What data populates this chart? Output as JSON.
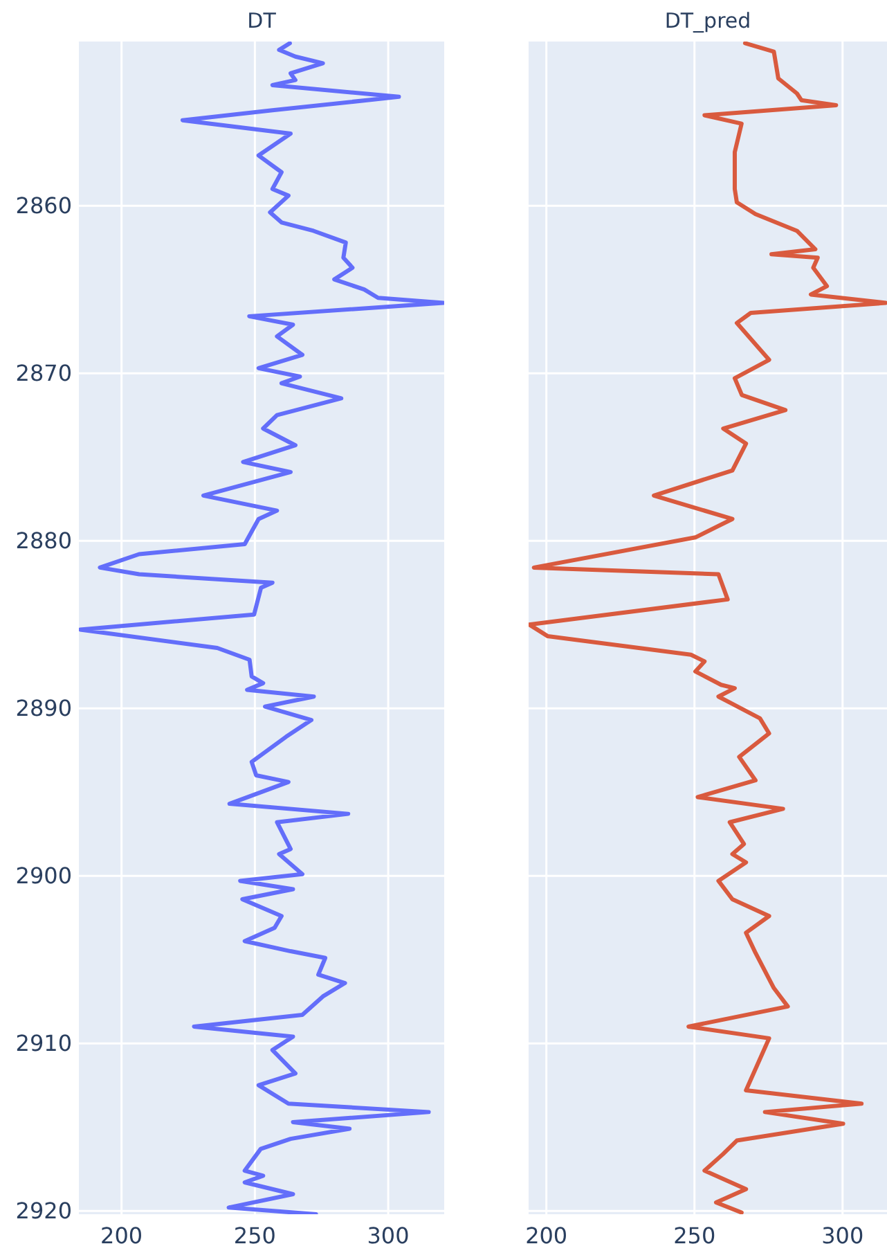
{
  "chart_data": [
    {
      "type": "line",
      "title": "DT",
      "xlim": [
        184,
        321
      ],
      "xticks": [
        200,
        250,
        300
      ],
      "ylim": [
        2920.2,
        2850.2
      ],
      "yticks": [
        2860,
        2870,
        2880,
        2890,
        2900,
        2910,
        2920
      ],
      "grid": true,
      "series": [
        {
          "color": "#636efa",
          "x": [
            263.1,
            259.1,
            265.2,
            275.5,
            263.4,
            265.2,
            256.6,
            304,
            256.6,
            222.9,
            263.4,
            251.4,
            260,
            256.6,
            262.6,
            255.7,
            260,
            272,
            284.1,
            283.2,
            286.6,
            279.8,
            291,
            296.2,
            320.7,
            247.9,
            264.3,
            258.3,
            267.8,
            251.4,
            266.9,
            260,
            282.4,
            258.3,
            253.1,
            265.2,
            245.6,
            263.4,
            230.7,
            258.3,
            251.4,
            246.2,
            206.6,
            191.9,
            206.6,
            256.6,
            252.3,
            249.7,
            184.5,
            235.9,
            248,
            248.8,
            253.1,
            247.1,
            272.1,
            253.8,
            271.2,
            261.7,
            248.8,
            250.5,
            262.6,
            240.5,
            285,
            258.3,
            263.4,
            259.1,
            267.8,
            244.5,
            264.3,
            245.3,
            260,
            257.4,
            246.2,
            263.4,
            276.4,
            273.8,
            283.8,
            275.5,
            267.8,
            227.2,
            264.3,
            256.6,
            265.2,
            251.4,
            262.6,
            315.2,
            264.3,
            285.5,
            263.4,
            252.2,
            246.2,
            253.1,
            246.2,
            264.3,
            240.2,
            272.9
          ],
          "values": [
            2850.3,
            2850.7,
            2851.1,
            2851.5,
            2852.1,
            2852.5,
            2852.8,
            2853.5,
            2854.3,
            2854.9,
            2855.7,
            2857,
            2858,
            2859,
            2859.4,
            2860.4,
            2861,
            2861.5,
            2862.2,
            2863.1,
            2863.7,
            2864.4,
            2865,
            2865.5,
            2865.8,
            2866.6,
            2867.1,
            2867.8,
            2868.9,
            2869.7,
            2870.2,
            2870.6,
            2871.5,
            2872.5,
            2873.3,
            2874.3,
            2875.3,
            2875.9,
            2877.3,
            2878.2,
            2878.7,
            2880.2,
            2880.8,
            2881.6,
            2882,
            2882.5,
            2882.8,
            2884.4,
            2885.3,
            2886.4,
            2887.1,
            2888.1,
            2888.5,
            2888.9,
            2889.3,
            2889.9,
            2890.7,
            2891.7,
            2893.2,
            2894,
            2894.4,
            2895.7,
            2896.3,
            2896.8,
            2898.4,
            2898.7,
            2899.9,
            2900.3,
            2900.8,
            2901.4,
            2902.4,
            2903.1,
            2903.9,
            2904.5,
            2904.9,
            2905.9,
            2906.4,
            2907.2,
            2908.3,
            2909,
            2909.6,
            2910.4,
            2911.8,
            2912.5,
            2913.6,
            2914.1,
            2914.7,
            2915.1,
            2915.7,
            2916.3,
            2917.6,
            2917.9,
            2918.3,
            2919,
            2919.8,
            2920.2
          ]
        }
      ]
    },
    {
      "type": "line",
      "title": "DT_pred",
      "xlim": [
        194,
        315
      ],
      "xticks": [
        200,
        250,
        300
      ],
      "ylim": [
        2920.2,
        2850.2
      ],
      "yticks": [
        2860,
        2870,
        2880,
        2890,
        2900,
        2910,
        2920
      ],
      "grid": true,
      "tick_labels": "x",
      "series": [
        {
          "color": "#d95a3e",
          "x": [
            267.1,
            276.8,
            278.3,
            284.6,
            286.1,
            297.8,
            253.4,
            265.9,
            263.6,
            263.6,
            264.3,
            270.6,
            284.6,
            290.8,
            276,
            291.6,
            290.1,
            294.7,
            289.3,
            314.6,
            269,
            264.3,
            275.2,
            263.6,
            266,
            280.7,
            259.7,
            267.4,
            262.8,
            236.3,
            262.8,
            250.3,
            195.8,
            258.1,
            261.2,
            194.2,
            200.5,
            248.8,
            253.4,
            250.3,
            259,
            263.6,
            258.1,
            272.1,
            275.2,
            265.1,
            270.6,
            251.1,
            279.9,
            261.9,
            266.7,
            262.8,
            267.4,
            258.1,
            262.8,
            275.2,
            267.4,
            270.6,
            276.8,
            281.5,
            248,
            275.2,
            267.4,
            306.4,
            273.8,
            300.2,
            264.3,
            259.7,
            253.4,
            267.4,
            257.3,
            265.9
          ],
          "values": [
            2850.3,
            2850.8,
            2852.4,
            2853.3,
            2853.7,
            2854,
            2854.6,
            2855.1,
            2856.8,
            2859,
            2859.8,
            2860.5,
            2861.5,
            2862.6,
            2862.9,
            2863.1,
            2863.7,
            2864.8,
            2865.3,
            2865.8,
            2866.4,
            2867,
            2869.2,
            2870.3,
            2871.3,
            2872.2,
            2873.3,
            2874.2,
            2875.8,
            2877.3,
            2878.7,
            2879.8,
            2881.6,
            2882,
            2883.5,
            2885,
            2885.7,
            2886.8,
            2887.2,
            2887.8,
            2888.6,
            2888.8,
            2889.3,
            2890.6,
            2891.5,
            2892.9,
            2894.3,
            2895.3,
            2896,
            2896.8,
            2898.1,
            2898.7,
            2899.2,
            2900.3,
            2901.4,
            2902.4,
            2903.4,
            2904.6,
            2906.7,
            2907.8,
            2909,
            2909.7,
            2912.8,
            2913.6,
            2914.1,
            2914.8,
            2915.8,
            2916.6,
            2917.6,
            2918.7,
            2919.5,
            2920.1
          ]
        }
      ]
    }
  ]
}
